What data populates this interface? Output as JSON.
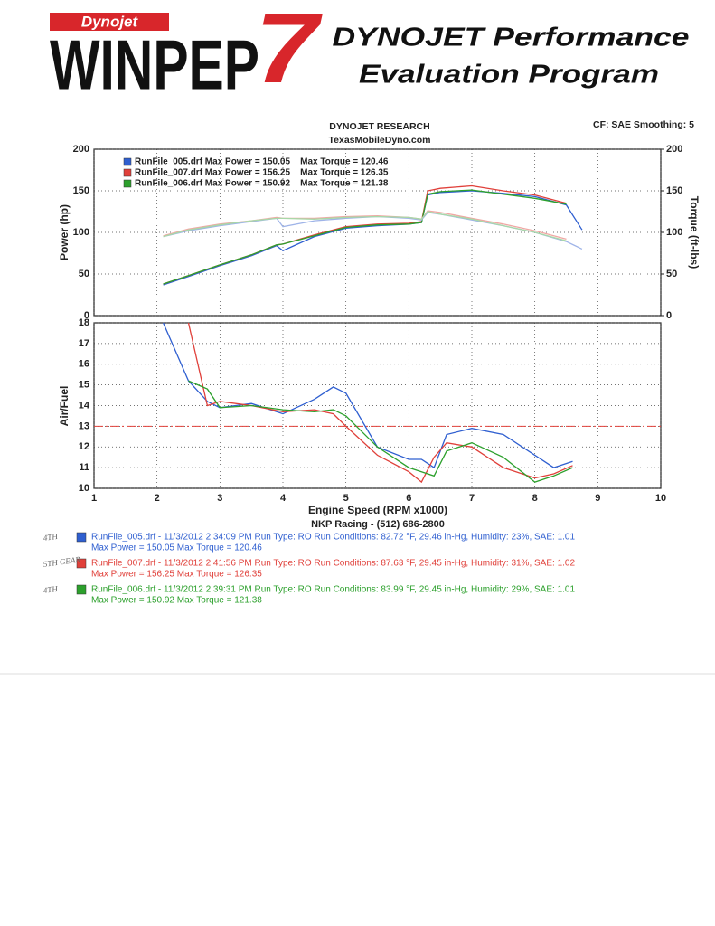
{
  "header": {
    "logo_top": "Dynojet",
    "logo_main": "WINPEP",
    "logo_num": "7",
    "title_line1": "DYNOJET Performance",
    "title_line2": "Evaluation Program"
  },
  "chart_data": [
    {
      "type": "line",
      "title": "DYNOJET RESEARCH",
      "subtitle": "TexasMobileDyno.com",
      "annotation": "CF: SAE  Smoothing: 5",
      "ylabel": "Power (hp)",
      "y2label": "Torque (ft-lbs)",
      "x": [
        2.1,
        2.5,
        3,
        3.5,
        3.9,
        4.0,
        4.5,
        5,
        5.5,
        6,
        6.2,
        6.3,
        6.5,
        7,
        7.5,
        8,
        8.5,
        8.75
      ],
      "xlim": [
        1,
        10
      ],
      "ylim": [
        0,
        200
      ],
      "yticks": [
        0,
        50,
        100,
        150,
        200
      ],
      "y2lim": [
        0,
        200
      ],
      "y2ticks": [
        0,
        50,
        100,
        150,
        200
      ],
      "grid": true,
      "legend": "upper left",
      "series": [
        {
          "name": "RunFile_005.drf Max Power = 150.05    Max Torque = 120.46",
          "color": "#2f5fd0",
          "values": [
            37,
            47,
            60,
            72,
            84,
            78,
            95,
            105,
            108,
            110,
            112,
            145,
            148,
            150,
            147,
            143,
            133,
            103
          ]
        },
        {
          "name": "RunFile_007.drf Max Power = 156.25    Max Torque = 126.35",
          "color": "#e0403a",
          "values": [
            38,
            48,
            61,
            73,
            85,
            86,
            97,
            107,
            110,
            111,
            113,
            150,
            153,
            156,
            150,
            145,
            135,
            null
          ]
        },
        {
          "name": "RunFile_006.drf Max Power = 150.92    Max Torque = 121.38",
          "color": "#2ca02c",
          "values": [
            38,
            48,
            61,
            73,
            85,
            86,
            96,
            106,
            109,
            110,
            112,
            146,
            149,
            151,
            146,
            141,
            134,
            null
          ]
        },
        {
          "axis": "y2",
          "color": "#9fb4e8",
          "values": [
            95,
            102,
            108,
            113,
            117,
            107,
            114,
            117,
            119,
            117,
            115,
            124,
            122,
            115,
            108,
            100,
            89,
            80
          ]
        },
        {
          "axis": "y2",
          "color": "#f0a8a4",
          "values": [
            96,
            104,
            110,
            114,
            118,
            117,
            117,
            119,
            120,
            118,
            116,
            126,
            124,
            117,
            110,
            102,
            92,
            null
          ]
        },
        {
          "axis": "y2",
          "color": "#a8d8a8",
          "values": [
            95,
            103,
            109,
            114,
            117,
            117,
            116,
            118,
            119,
            118,
            116,
            125,
            122,
            116,
            108,
            100,
            90,
            null
          ]
        }
      ]
    },
    {
      "type": "line",
      "ylabel": "Air/Fuel",
      "xlabel": "Engine Speed (RPM x1000)",
      "x": [
        2.1,
        2.5,
        2.8,
        3,
        3.5,
        4,
        4.5,
        4.8,
        5,
        5.5,
        6,
        6.2,
        6.4,
        6.6,
        7,
        7.5,
        8,
        8.3,
        8.6
      ],
      "xlim": [
        1,
        10
      ],
      "xticks": [
        1,
        2,
        3,
        4,
        5,
        6,
        7,
        8,
        9,
        10
      ],
      "ylim": [
        10,
        18
      ],
      "yticks": [
        10,
        11,
        12,
        13,
        14,
        15,
        16,
        17,
        18
      ],
      "grid": true,
      "reference_line": 13,
      "reference_color": "#e0403a",
      "series": [
        {
          "color": "#2f5fd0",
          "values": [
            18,
            15.2,
            14.2,
            13.9,
            14.1,
            13.6,
            14.3,
            14.9,
            14.6,
            12.0,
            11.4,
            11.4,
            11.0,
            12.6,
            12.9,
            12.6,
            11.6,
            11.0,
            11.3
          ]
        },
        {
          "color": "#e0403a",
          "values": [
            null,
            18,
            14.0,
            14.2,
            14.0,
            13.7,
            13.8,
            13.6,
            13.0,
            11.6,
            10.8,
            10.3,
            11.5,
            12.2,
            12.0,
            11.0,
            10.5,
            10.7,
            11.1
          ]
        },
        {
          "color": "#2ca02c",
          "values": [
            null,
            15.2,
            14.8,
            13.9,
            14.0,
            13.8,
            13.7,
            13.8,
            13.5,
            12.0,
            11.0,
            10.8,
            10.6,
            11.8,
            12.2,
            11.5,
            10.3,
            10.6,
            11.0
          ]
        }
      ]
    }
  ],
  "footer": {
    "shop": "NKP Racing - (512) 686-2800",
    "runs": [
      {
        "color": "#2f5fd0",
        "line1": "RunFile_005.drf - 11/3/2012 2:34:09 PM  Run Type: RO  Run Conditions: 82.72 °F, 29.46 in-Hg,  Humidity:  23%, SAE: 1.01",
        "line2": "Max Power = 150.05  Max Torque = 120.46",
        "note": "4TH"
      },
      {
        "color": "#e0403a",
        "line1": "RunFile_007.drf - 11/3/2012 2:41:56 PM  Run Type: RO  Run Conditions: 87.63 °F, 29.45 in-Hg,  Humidity:  31%, SAE: 1.02",
        "line2": "Max Power = 156.25  Max Torque = 126.35",
        "note": "5TH GEAR"
      },
      {
        "color": "#2ca02c",
        "line1": "RunFile_006.drf - 11/3/2012 2:39:31 PM  Run Type: RO  Run Conditions: 83.99 °F, 29.45 in-Hg,  Humidity:  29%, SAE: 1.01",
        "line2": "Max Power = 150.92  Max Torque = 121.38",
        "note": "4TH"
      }
    ]
  }
}
